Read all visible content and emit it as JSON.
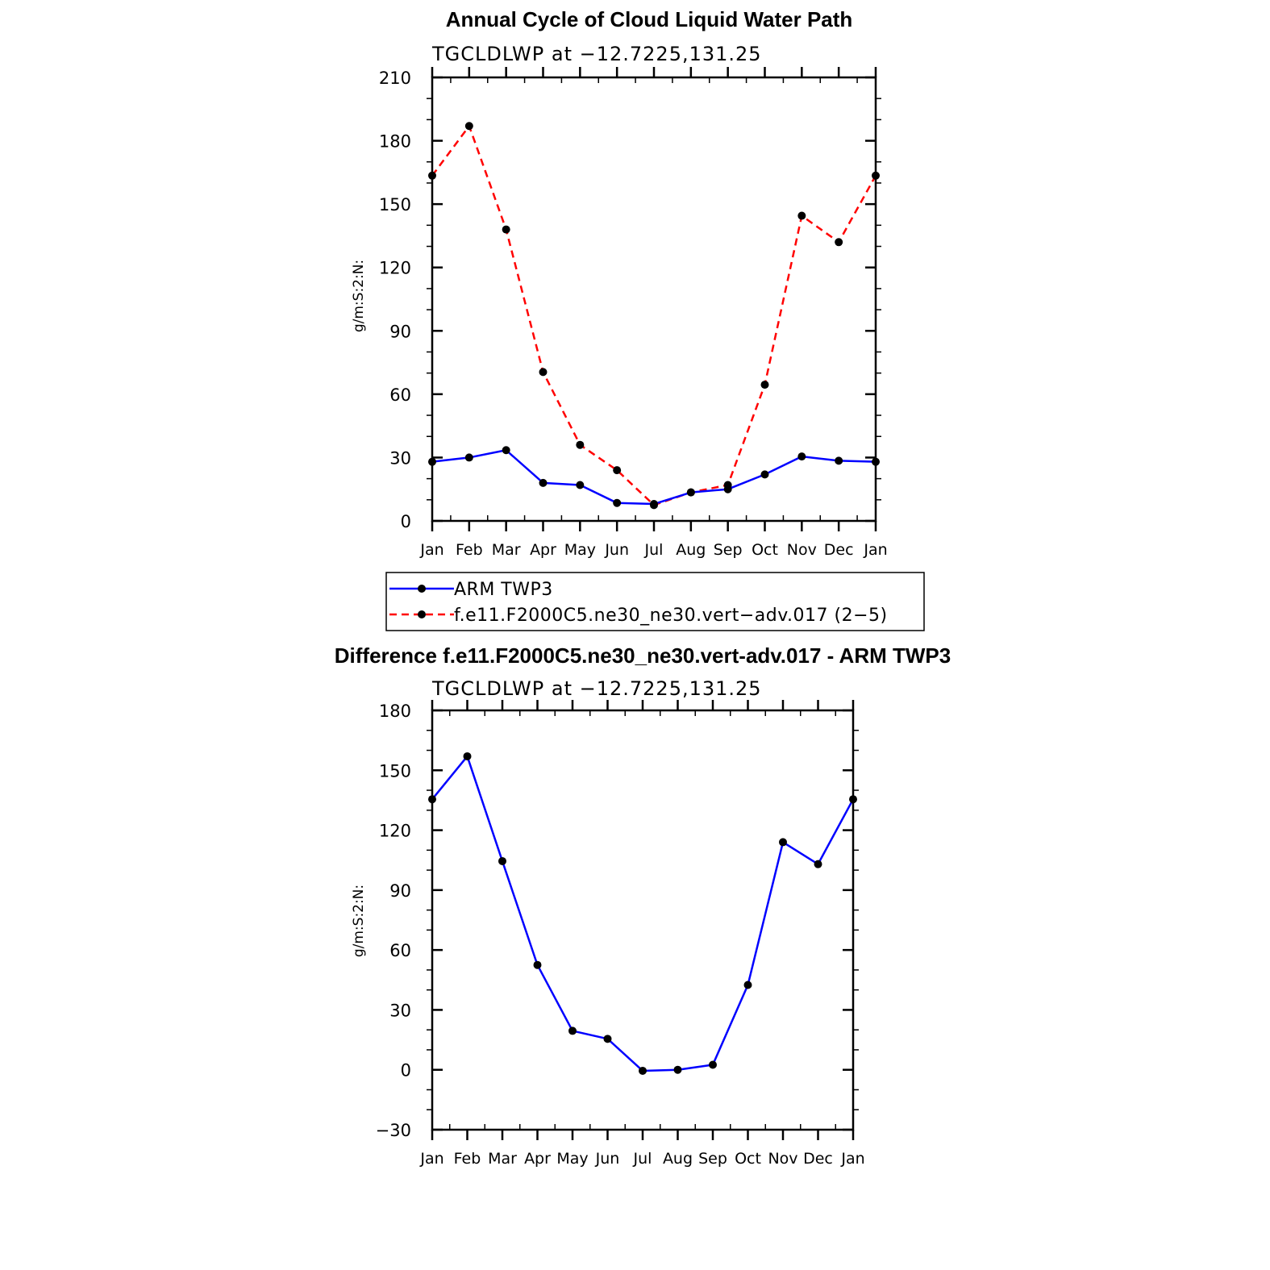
{
  "chart_data": [
    {
      "type": "line",
      "title": "Annual Cycle of Cloud Liquid Water Path",
      "subtitle": "TGCLDLWP at −12.7225,131.25",
      "ylabel": "g/m:S:2:N:",
      "xlabel": "",
      "categories": [
        "Jan",
        "Feb",
        "Mar",
        "Apr",
        "May",
        "Jun",
        "Jul",
        "Aug",
        "Sep",
        "Oct",
        "Nov",
        "Dec",
        "Jan"
      ],
      "ylim": [
        0,
        210
      ],
      "yticks": [
        0,
        30,
        60,
        90,
        120,
        150,
        180,
        210
      ],
      "ytick_labels": [
        "0",
        "30",
        "60",
        "90",
        "120",
        "150",
        "180",
        "210"
      ],
      "grid": false,
      "legend_position": "below",
      "series": [
        {
          "name": "ARM TWP3",
          "color": "#0000ff",
          "dash": "solid",
          "values": [
            28,
            30,
            33.5,
            18,
            17,
            8.5,
            8,
            13.5,
            15,
            22,
            30.5,
            28.5,
            28
          ]
        },
        {
          "name": "f.e11.F2000C5.ne30_ne30.vert−adv.017 (2−5)",
          "color": "#ff0000",
          "dash": "dashed",
          "values": [
            163.5,
            187,
            138,
            70.5,
            36,
            24,
            7.5,
            13.5,
            17,
            64.5,
            144.5,
            132,
            163.5
          ]
        }
      ]
    },
    {
      "type": "line",
      "title": "Difference f.e11.F2000C5.ne30_ne30.vert-adv.017 - ARM TWP3",
      "subtitle": "TGCLDLWP at −12.7225,131.25",
      "ylabel": "g/m:S:2:N:",
      "xlabel": "",
      "categories": [
        "Jan",
        "Feb",
        "Mar",
        "Apr",
        "May",
        "Jun",
        "Jul",
        "Aug",
        "Sep",
        "Oct",
        "Nov",
        "Dec",
        "Jan"
      ],
      "ylim": [
        -30,
        180
      ],
      "yticks": [
        -30,
        0,
        30,
        60,
        90,
        120,
        150,
        180
      ],
      "ytick_labels": [
        "−30",
        "0",
        "30",
        "60",
        "90",
        "120",
        "150",
        "180"
      ],
      "grid": false,
      "series": [
        {
          "color": "#0000ff",
          "dash": "solid",
          "values": [
            135.5,
            157,
            104.5,
            52.5,
            19.5,
            15.5,
            -0.5,
            0,
            2.5,
            42.5,
            114,
            103,
            135.5
          ]
        }
      ]
    }
  ]
}
